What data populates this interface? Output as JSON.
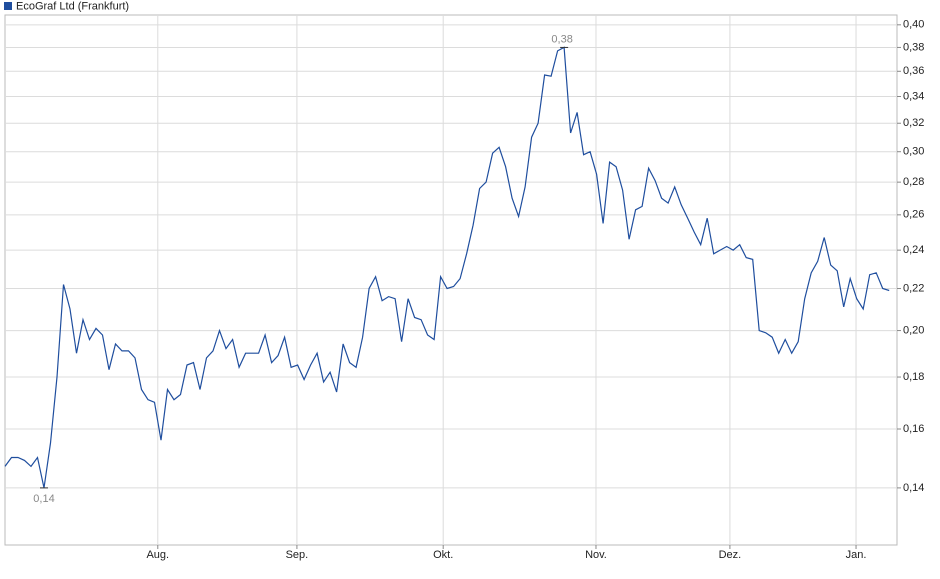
{
  "chart_data": {
    "type": "line",
    "title": "EcoGraf Ltd (Frankfurt)",
    "color": "#1f4e9e",
    "log_scale": true,
    "grid": true,
    "values": [
      0.147,
      0.15,
      0.15,
      0.149,
      0.147,
      0.15,
      0.14,
      0.155,
      0.18,
      0.222,
      0.21,
      0.19,
      0.205,
      0.196,
      0.201,
      0.198,
      0.183,
      0.194,
      0.191,
      0.191,
      0.188,
      0.175,
      0.171,
      0.17,
      0.156,
      0.175,
      0.171,
      0.173,
      0.185,
      0.186,
      0.175,
      0.188,
      0.191,
      0.2,
      0.192,
      0.196,
      0.184,
      0.19,
      0.19,
      0.19,
      0.198,
      0.186,
      0.189,
      0.197,
      0.184,
      0.185,
      0.179,
      0.185,
      0.19,
      0.178,
      0.182,
      0.174,
      0.194,
      0.186,
      0.184,
      0.197,
      0.22,
      0.226,
      0.214,
      0.216,
      0.215,
      0.195,
      0.215,
      0.206,
      0.205,
      0.198,
      0.196,
      0.226,
      0.22,
      0.221,
      0.225,
      0.238,
      0.254,
      0.276,
      0.28,
      0.299,
      0.303,
      0.29,
      0.27,
      0.259,
      0.277,
      0.31,
      0.32,
      0.357,
      0.356,
      0.377,
      0.38,
      0.313,
      0.328,
      0.298,
      0.3,
      0.285,
      0.255,
      0.293,
      0.29,
      0.275,
      0.246,
      0.263,
      0.265,
      0.289,
      0.281,
      0.27,
      0.267,
      0.277,
      0.266,
      0.258,
      0.25,
      0.243,
      0.258,
      0.238,
      0.24,
      0.242,
      0.24,
      0.243,
      0.236,
      0.235,
      0.2,
      0.199,
      0.197,
      0.19,
      0.196,
      0.19,
      0.195,
      0.215,
      0.228,
      0.234,
      0.247,
      0.232,
      0.229,
      0.211,
      0.225,
      0.215,
      0.21,
      0.227,
      0.228,
      0.22,
      0.219
    ],
    "max_label": "0,38",
    "min_label": "0,14",
    "xlim": [
      0,
      137.2
    ],
    "xticks": [
      {
        "value": 23.5,
        "label": "Aug."
      },
      {
        "value": 44.9,
        "label": "Sep."
      },
      {
        "value": 67.4,
        "label": "Okt."
      },
      {
        "value": 90.9,
        "label": "Nov."
      },
      {
        "value": 111.5,
        "label": "Dez."
      },
      {
        "value": 130.9,
        "label": "Jan."
      }
    ],
    "ylim": [
      0.123,
      0.409
    ],
    "yticks": [
      {
        "value": 0.14,
        "label": "0,14"
      },
      {
        "value": 0.16,
        "label": "0,16"
      },
      {
        "value": 0.18,
        "label": "0,18"
      },
      {
        "value": 0.2,
        "label": "0,20"
      },
      {
        "value": 0.22,
        "label": "0,22"
      },
      {
        "value": 0.24,
        "label": "0,24"
      },
      {
        "value": 0.26,
        "label": "0,26"
      },
      {
        "value": 0.28,
        "label": "0,28"
      },
      {
        "value": 0.3,
        "label": "0,30"
      },
      {
        "value": 0.32,
        "label": "0,32"
      },
      {
        "value": 0.34,
        "label": "0,34"
      },
      {
        "value": 0.36,
        "label": "0,36"
      },
      {
        "value": 0.38,
        "label": "0,38"
      },
      {
        "value": 0.4,
        "label": "0,40"
      }
    ]
  }
}
